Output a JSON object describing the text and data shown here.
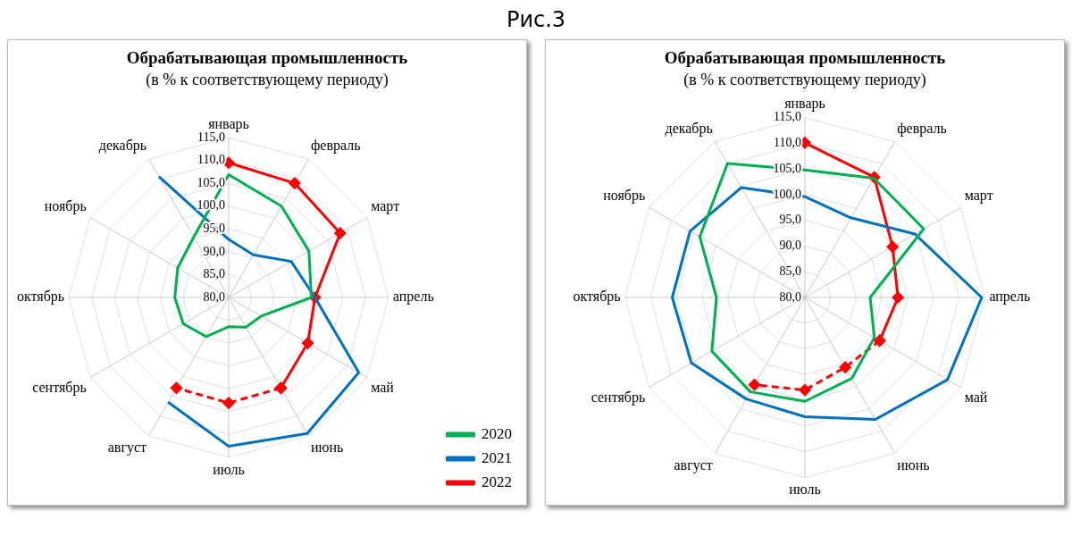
{
  "chart_data": [
    {
      "type": "radar",
      "title": "Обрабатывающая промышленность",
      "subtitle": "(в % к соответствующему периоду)",
      "annotations": [
        "Рис.3"
      ],
      "categories": [
        "январь",
        "февраль",
        "март",
        "апрель",
        "май",
        "июнь",
        "июль",
        "август",
        "сентябрь",
        "октябрь",
        "ноябрь",
        "декабрь"
      ],
      "ylim": [
        80,
        115
      ],
      "yticks": [
        {
          "value": 80,
          "label": "80,0"
        },
        {
          "value": 85,
          "label": "85,0"
        },
        {
          "value": 90,
          "label": "90,0"
        },
        {
          "value": 95,
          "label": "95,0"
        },
        {
          "value": 100,
          "label": "100,0"
        },
        {
          "value": 105,
          "label": "105,0"
        },
        {
          "value": 110,
          "label": "110,0"
        },
        {
          "value": 115,
          "label": "115,0"
        }
      ],
      "grid": true,
      "legend": "bottom right",
      "series": [
        {
          "name": "2020",
          "color": "#00b050",
          "marker": "none",
          "line_style": "solid",
          "values": [
            106.9,
            103.1,
            100.3,
            98.1,
            88.2,
            87.5,
            86.4,
            89.9,
            91.5,
            91.8,
            92.9,
            95.3
          ]
        },
        {
          "name": "2021",
          "color": "#0070c0",
          "marker": "none",
          "line_style": "solid",
          "values": [
            92.7,
            90.8,
            95.8,
            98.9,
            112.9,
            114.4,
            112.6,
            106.5,
            null,
            null,
            null,
            110.6
          ]
        },
        {
          "name": "2022",
          "color": "#ff0000",
          "marker": "diamond",
          "line_style": "solid",
          "values": [
            109.5,
            108.9,
            108.2,
            98.9,
            100,
            102.9,
            null,
            null,
            null,
            null,
            null,
            null
          ]
        },
        {
          "color": "#ff0000",
          "marker": "diamond",
          "line_style": "dashed",
          "values": [
            null,
            null,
            null,
            null,
            null,
            102.9,
            103.1,
            102.9,
            null,
            null,
            null,
            null
          ]
        }
      ]
    },
    {
      "type": "radar",
      "title": "Обрабатывающая промышленность",
      "subtitle": "(в % к соответствующему периоду)",
      "categories": [
        "январь",
        "февраль",
        "март",
        "апрель",
        "май",
        "июнь",
        "июль",
        "август",
        "сентябрь",
        "октябрь",
        "ноябрь",
        "декабрь"
      ],
      "ylim": [
        80,
        115
      ],
      "yticks": [
        {
          "value": 80,
          "label": "80,0"
        },
        {
          "value": 85,
          "label": "85,0"
        },
        {
          "value": 90,
          "label": "90,0"
        },
        {
          "value": 95,
          "label": "95,0"
        },
        {
          "value": 100,
          "label": "100,0"
        },
        {
          "value": 105,
          "label": "105,0"
        },
        {
          "value": 110,
          "label": "110,0"
        },
        {
          "value": 115,
          "label": "115,0"
        }
      ],
      "grid": true,
      "series": [
        {
          "color": "#00b050",
          "marker": "none",
          "line_style": "solid",
          "values": [
            104.8,
            106.8,
            106.7,
            92.7,
            95.6,
            98.2,
            100.2,
            101.2,
            100.9,
            97.2,
            103.6,
            110.1
          ]
        },
        {
          "color": "#0070c0",
          "marker": "none",
          "line_style": "solid",
          "values": [
            99.6,
            97.9,
            104.7,
            114.4,
            112.0,
            107.4,
            103.2,
            102.8,
            105.5,
            105.8,
            105.8,
            104.7
          ]
        },
        {
          "color": "#ff0000",
          "marker": "diamond",
          "line_style": "solid",
          "values": [
            110.1,
            107,
            99.7,
            98.1,
            96.8,
            null,
            null,
            null,
            null,
            null,
            null,
            null
          ]
        },
        {
          "color": "#ff0000",
          "marker": "diamond",
          "line_style": "dashed",
          "values": [
            null,
            null,
            null,
            null,
            96.8,
            95.7,
            98.0,
            99.6,
            null,
            null,
            null,
            null
          ]
        }
      ]
    }
  ]
}
